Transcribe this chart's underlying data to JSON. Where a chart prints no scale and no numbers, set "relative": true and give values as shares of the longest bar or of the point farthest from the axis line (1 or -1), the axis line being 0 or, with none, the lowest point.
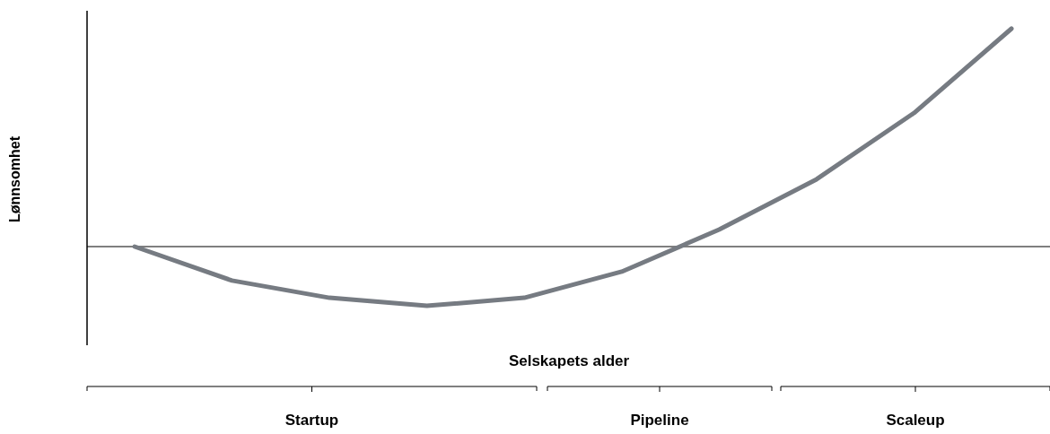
{
  "chart_data": {
    "type": "line",
    "relative": true,
    "xlabel": "Selskapets alder",
    "ylabel": "Lønnsomhet",
    "categories": [
      null,
      null,
      null,
      null,
      null,
      null,
      null,
      null,
      null,
      null
    ],
    "series": [
      {
        "color": "#767b82",
        "values": [
          0,
          -0.156,
          -0.235,
          -0.272,
          -0.235,
          -0.115,
          0.078,
          0.309,
          0.613,
          1
        ]
      }
    ],
    "annotations": [
      "Startup",
      "Pipeline",
      "Scaleup"
    ],
    "grid": false,
    "marker": "none",
    "line_style": "solid"
  }
}
